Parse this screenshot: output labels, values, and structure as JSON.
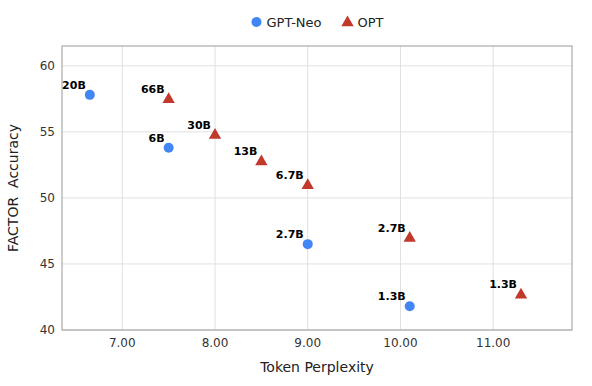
{
  "chart_data": {
    "type": "scatter",
    "xlabel": "Token Perplexity",
    "ylabel": "FACTOR  Accuracy",
    "xlim": [
      6.35,
      11.85
    ],
    "ylim": [
      40,
      61.5
    ],
    "xticks": [
      {
        "value": 7.0,
        "label": "7.00"
      },
      {
        "value": 8.0,
        "label": "8.00"
      },
      {
        "value": 9.0,
        "label": "9.00"
      },
      {
        "value": 10.0,
        "label": "10.00"
      },
      {
        "value": 11.0,
        "label": "11.00"
      }
    ],
    "yticks": [
      40,
      45,
      50,
      55,
      60
    ],
    "grid": true,
    "legend": "top",
    "series": [
      {
        "name": "GPT-Neo",
        "color": "#4285F4",
        "marker": "circle",
        "x": [
          6.65,
          7.5,
          9.0,
          10.1
        ],
        "values": [
          57.8,
          53.8,
          46.5,
          41.8
        ],
        "labels": [
          "20B",
          "6B",
          "2.7B",
          "1.3B"
        ]
      },
      {
        "name": "OPT",
        "color": "#C0392B",
        "marker": "triangle",
        "x": [
          7.5,
          8.0,
          8.5,
          9.0,
          10.1,
          11.3
        ],
        "values": [
          57.5,
          54.8,
          52.8,
          51.0,
          47.0,
          42.7
        ],
        "labels": [
          "66B",
          "30B",
          "13B",
          "6.7B",
          "2.7B",
          "1.3B"
        ]
      }
    ]
  }
}
